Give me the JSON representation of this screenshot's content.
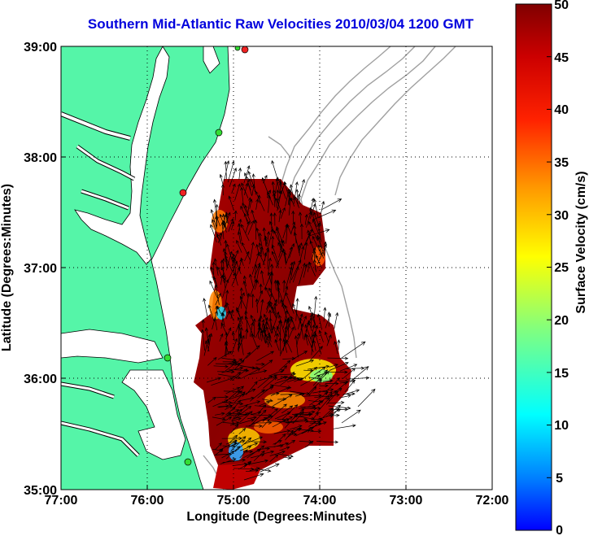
{
  "title": "Southern Mid-Atlantic Raw Velocities 2010/03/04 1200 GMT",
  "x_axis": {
    "label": "Longitude (Degrees:Minutes)",
    "ticks": [
      "77:00",
      "76:00",
      "75:00",
      "74:00",
      "73:00",
      "72:00"
    ]
  },
  "y_axis": {
    "label": "Latitude (Degrees:Minutes)",
    "ticks": [
      "39:00",
      "38:00",
      "37:00",
      "36:00",
      "35:00"
    ]
  },
  "colorbar": {
    "label": "Surface Velocity (cm/s)",
    "ticks": [
      "50",
      "45",
      "40",
      "35",
      "30",
      "25",
      "20",
      "15",
      "10",
      "5",
      "0"
    ],
    "range": [
      0,
      50
    ]
  },
  "colors": {
    "land": "#55f5a8",
    "title": "#0000dd",
    "bathymetry": "#a0a0a0",
    "arrows": "#000000",
    "station_green": "#33dd33",
    "station_red": "#ee2222"
  },
  "chart_data": {
    "type": "heatmap",
    "title": "Southern Mid-Atlantic Raw Velocities 2010/03/04 1200 GMT",
    "xlabel": "Longitude (Degrees:Minutes)",
    "ylabel": "Latitude (Degrees:Minutes)",
    "xlim": [
      -77,
      -72
    ],
    "ylim": [
      35,
      39
    ],
    "grid": "dotted",
    "colorbar_label": "Surface Velocity (cm/s)",
    "colorbar_range": [
      0,
      50
    ]
  }
}
